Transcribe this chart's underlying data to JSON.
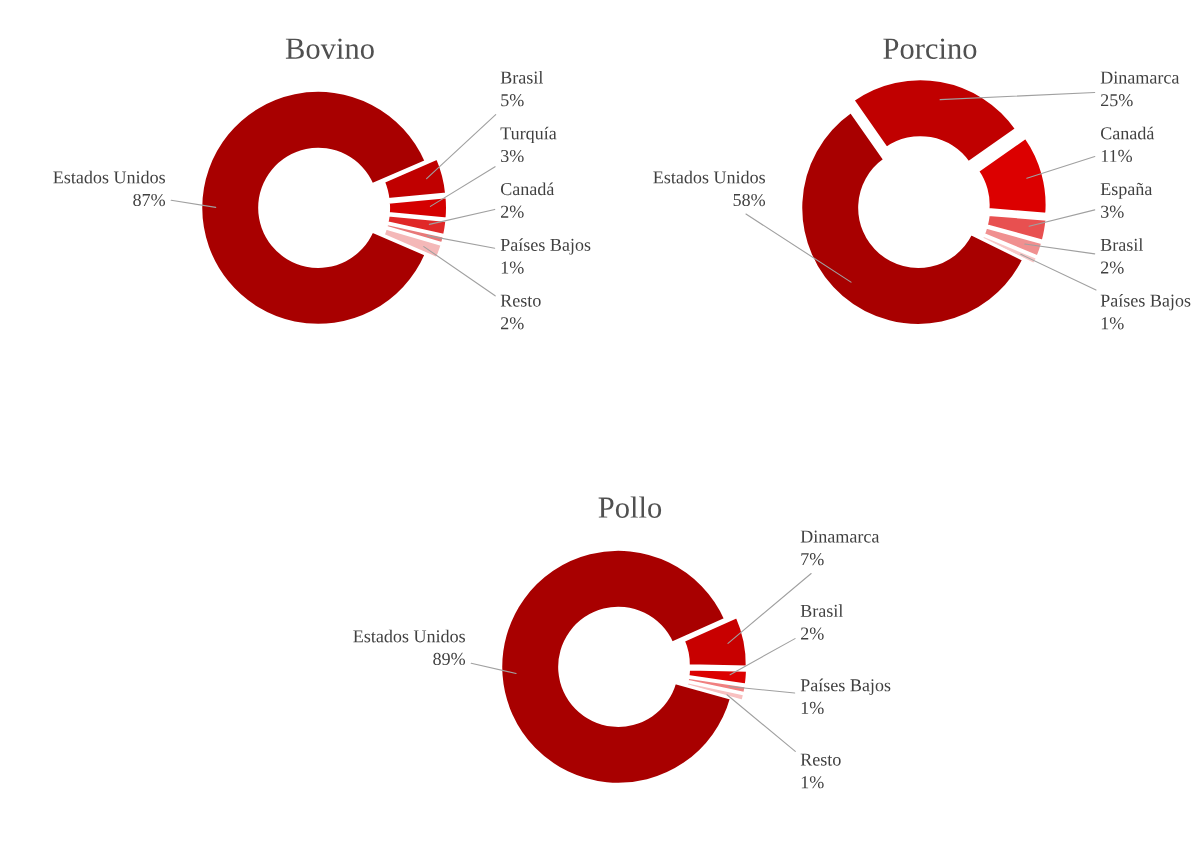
{
  "chart_data": [
    {
      "type": "donut",
      "title": "Bovino",
      "categories": [
        "Brasil",
        "Turquía",
        "Canadá",
        "Países Bajos",
        "Resto",
        "Estados Unidos"
      ],
      "values": [
        5,
        3,
        2,
        1,
        2,
        87
      ],
      "value_labels": [
        "5%",
        "3%",
        "2%",
        "1%",
        "2%",
        "87%"
      ],
      "colors": [
        "#c00000",
        "#d40000",
        "#e02828",
        "#e87878",
        "#f4b8b8",
        "#a80000"
      ]
    },
    {
      "type": "donut",
      "title": "Porcino",
      "categories": [
        "Dinamarca",
        "Canadá",
        "España",
        "Brasil",
        "Países Bajos",
        "Estados Unidos"
      ],
      "values": [
        25,
        11,
        3,
        2,
        1,
        58
      ],
      "value_labels": [
        "25%",
        "11%",
        "3%",
        "2%",
        "1%",
        "58%"
      ],
      "colors": [
        "#c00000",
        "#dc0000",
        "#e85050",
        "#f09090",
        "#f8c8c8",
        "#a80000"
      ]
    },
    {
      "type": "donut",
      "title": "Pollo",
      "categories": [
        "Dinamarca",
        "Brasil",
        "Países Bajos",
        "Resto",
        "Estados Unidos"
      ],
      "values": [
        7,
        2,
        1,
        1,
        89
      ],
      "value_labels": [
        "7%",
        "2%",
        "1%",
        "1%",
        "89%"
      ],
      "colors": [
        "#c80000",
        "#dc0000",
        "#f08080",
        "#f8c0c0",
        "#a80000"
      ]
    }
  ]
}
